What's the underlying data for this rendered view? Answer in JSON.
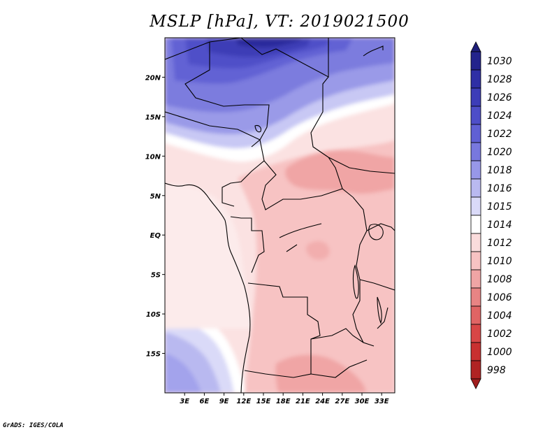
{
  "title": "MSLP [hPa], VT: 2019021500",
  "credit": "GrADS: IGES/COLA",
  "map": {
    "variable": "MSLP",
    "units": "hPa",
    "valid_time": "2019021500",
    "lon_range": [
      0,
      35
    ],
    "lat_range": [
      -20,
      25
    ],
    "lon_ticks": [
      {
        "value": 3,
        "label": "3E"
      },
      {
        "value": 6,
        "label": "6E"
      },
      {
        "value": 9,
        "label": "9E"
      },
      {
        "value": 12,
        "label": "12E"
      },
      {
        "value": 15,
        "label": "15E"
      },
      {
        "value": 18,
        "label": "18E"
      },
      {
        "value": 21,
        "label": "21E"
      },
      {
        "value": 24,
        "label": "24E"
      },
      {
        "value": 27,
        "label": "27E"
      },
      {
        "value": 30,
        "label": "30E"
      },
      {
        "value": 33,
        "label": "33E"
      }
    ],
    "lat_ticks": [
      {
        "value": 20,
        "label": "20N"
      },
      {
        "value": 15,
        "label": "15N"
      },
      {
        "value": 10,
        "label": "10N"
      },
      {
        "value": 5,
        "label": "5N"
      },
      {
        "value": 0,
        "label": "EQ"
      },
      {
        "value": -5,
        "label": "5S"
      },
      {
        "value": -10,
        "label": "10S"
      },
      {
        "value": -15,
        "label": "15S"
      }
    ]
  },
  "colorbar": {
    "levels": [
      {
        "label": "1030",
        "color": "#23238c"
      },
      {
        "label": "1028",
        "color": "#2f2fa5"
      },
      {
        "label": "1026",
        "color": "#3d3db8"
      },
      {
        "label": "1024",
        "color": "#4e4ec8"
      },
      {
        "label": "1022",
        "color": "#6060d4"
      },
      {
        "label": "1020",
        "color": "#7878de"
      },
      {
        "label": "1018",
        "color": "#9797e8"
      },
      {
        "label": "1016",
        "color": "#b9b9f0"
      },
      {
        "label": "1015",
        "color": "#dadaf8"
      },
      {
        "label": "1014",
        "color": "#ffffff"
      },
      {
        "label": "1012",
        "color": "#fadcdc"
      },
      {
        "label": "1010",
        "color": "#f7c3c3"
      },
      {
        "label": "1008",
        "color": "#f0a5a5"
      },
      {
        "label": "1006",
        "color": "#e88484"
      },
      {
        "label": "1004",
        "color": "#e06464"
      },
      {
        "label": "1002",
        "color": "#d84646"
      },
      {
        "label": "1000",
        "color": "#c83030"
      },
      {
        "label": "998",
        "color": "#b02323"
      }
    ],
    "top_cap_color": "#1e1e78",
    "bottom_cap_color": "#a01e1e"
  }
}
